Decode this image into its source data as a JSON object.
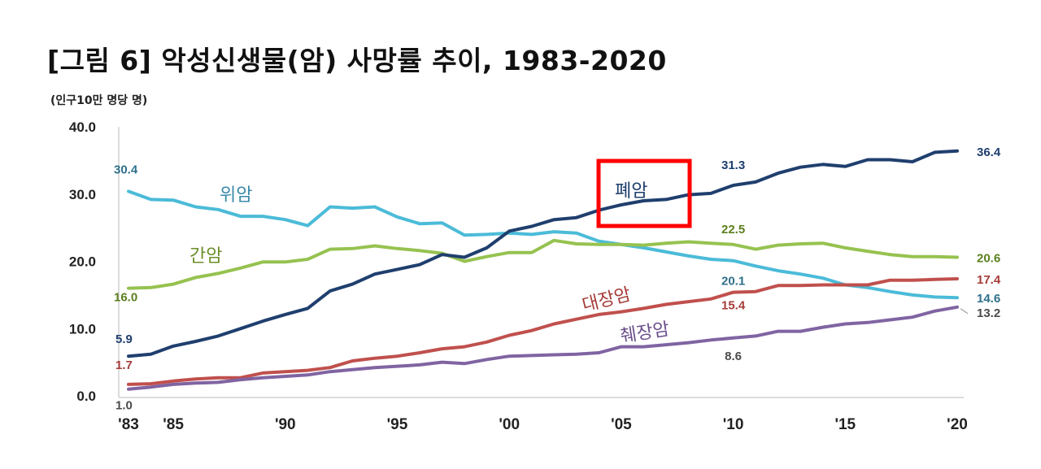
{
  "header": {
    "title": "[그림 6] 악성신생물(암) 사망률 추이, 1983-2020",
    "unit": "(인구10만 명당 명)"
  },
  "chart_data": {
    "type": "line",
    "title": "[그림 6] 악성신생물(암) 사망률 추이, 1983-2020",
    "ylabel": "(인구10만 명당 명)",
    "xlabel": "",
    "ylim": [
      0,
      40
    ],
    "yticks": [
      "0.0",
      "10.0",
      "20.0",
      "30.0",
      "40.0"
    ],
    "x_tick_labels": [
      {
        "year": 1983,
        "label": "'83"
      },
      {
        "year": 1985,
        "label": "'85"
      },
      {
        "year": 1990,
        "label": "'90"
      },
      {
        "year": 1995,
        "label": "'95"
      },
      {
        "year": 2000,
        "label": "'00"
      },
      {
        "year": 2005,
        "label": "'05"
      },
      {
        "year": 2010,
        "label": "'10"
      },
      {
        "year": 2015,
        "label": "'15"
      },
      {
        "year": 2020,
        "label": "'20"
      }
    ],
    "x": [
      1983,
      1984,
      1985,
      1986,
      1987,
      1988,
      1989,
      1990,
      1991,
      1992,
      1993,
      1994,
      1995,
      1996,
      1997,
      1998,
      1999,
      2000,
      2001,
      2002,
      2003,
      2004,
      2005,
      2006,
      2007,
      2008,
      2009,
      2010,
      2011,
      2012,
      2013,
      2014,
      2015,
      2016,
      2017,
      2018,
      2019,
      2020
    ],
    "grid": false,
    "series": [
      {
        "name": "위암",
        "color": "#4bbbd8",
        "values": [
          30.4,
          29.2,
          29.1,
          28.1,
          27.7,
          26.7,
          26.7,
          26.2,
          25.3,
          28.1,
          27.9,
          28.1,
          26.6,
          25.6,
          25.7,
          23.9,
          24.0,
          24.2,
          24.0,
          24.4,
          24.2,
          23.0,
          22.5,
          22.0,
          21.4,
          20.8,
          20.3,
          20.1,
          19.3,
          18.6,
          18.1,
          17.5,
          16.5,
          16.1,
          15.5,
          15.0,
          14.7,
          14.6
        ]
      },
      {
        "name": "간암",
        "color": "#96c250",
        "values": [
          16.0,
          16.1,
          16.6,
          17.6,
          18.2,
          19.0,
          19.9,
          19.9,
          20.3,
          21.8,
          21.9,
          22.3,
          21.9,
          21.6,
          21.2,
          20.0,
          20.7,
          21.3,
          21.3,
          23.1,
          22.6,
          22.5,
          22.5,
          22.4,
          22.7,
          22.9,
          22.7,
          22.5,
          21.8,
          22.4,
          22.6,
          22.7,
          22.0,
          21.5,
          21.0,
          20.7,
          20.7,
          20.6
        ]
      },
      {
        "name": "폐암",
        "color": "#1f3f6e",
        "values": [
          5.9,
          6.2,
          7.4,
          8.1,
          8.9,
          10.0,
          11.1,
          12.1,
          13.0,
          15.6,
          16.6,
          18.1,
          18.8,
          19.5,
          21.0,
          20.6,
          22.0,
          24.5,
          25.2,
          26.2,
          26.5,
          27.6,
          28.4,
          29.0,
          29.2,
          29.9,
          30.1,
          31.3,
          31.8,
          33.1,
          34.0,
          34.4,
          34.1,
          35.1,
          35.1,
          34.8,
          36.2,
          36.4
        ]
      },
      {
        "name": "대장암",
        "color": "#c0504d",
        "values": [
          1.7,
          1.8,
          2.2,
          2.5,
          2.7,
          2.7,
          3.4,
          3.6,
          3.8,
          4.2,
          5.2,
          5.6,
          5.9,
          6.4,
          7.0,
          7.3,
          8.0,
          9.0,
          9.7,
          10.7,
          11.4,
          12.1,
          12.5,
          13.0,
          13.6,
          14.0,
          14.4,
          15.4,
          15.5,
          16.4,
          16.4,
          16.5,
          16.5,
          16.5,
          17.2,
          17.2,
          17.3,
          17.4
        ]
      },
      {
        "name": "췌장암",
        "color": "#8064a2",
        "values": [
          1.0,
          1.3,
          1.7,
          1.9,
          2.0,
          2.4,
          2.7,
          2.9,
          3.1,
          3.6,
          3.9,
          4.2,
          4.4,
          4.6,
          5.0,
          4.8,
          5.4,
          5.9,
          6.0,
          6.1,
          6.2,
          6.4,
          7.3,
          7.3,
          7.6,
          7.9,
          8.3,
          8.6,
          8.9,
          9.6,
          9.6,
          10.2,
          10.7,
          10.9,
          11.3,
          11.7,
          12.6,
          13.2
        ]
      }
    ],
    "data_labels": [
      {
        "series": "위암",
        "year": 1983,
        "text": "30.4"
      },
      {
        "series": "위암",
        "year": 2010,
        "text": "20.1"
      },
      {
        "series": "위암",
        "year": 2020,
        "text": "14.6"
      },
      {
        "series": "간암",
        "year": 1983,
        "text": "16.0"
      },
      {
        "series": "간암",
        "year": 2010,
        "text": "22.5"
      },
      {
        "series": "간암",
        "year": 2020,
        "text": "20.6"
      },
      {
        "series": "폐암",
        "year": 1983,
        "text": "5.9"
      },
      {
        "series": "폐암",
        "year": 2010,
        "text": "31.3"
      },
      {
        "series": "폐암",
        "year": 2020,
        "text": "36.4"
      },
      {
        "series": "대장암",
        "year": 1983,
        "text": "1.7"
      },
      {
        "series": "대장암",
        "year": 2010,
        "text": "15.4"
      },
      {
        "series": "대장암",
        "year": 2020,
        "text": "17.4"
      },
      {
        "series": "췌장암",
        "year": 1983,
        "text": "1.0"
      },
      {
        "series": "췌장암",
        "year": 2010,
        "text": "8.6"
      },
      {
        "series": "췌장암",
        "year": 2020,
        "text": "13.2"
      }
    ],
    "highlight": {
      "series": "폐암",
      "color": "#ff0000"
    }
  }
}
